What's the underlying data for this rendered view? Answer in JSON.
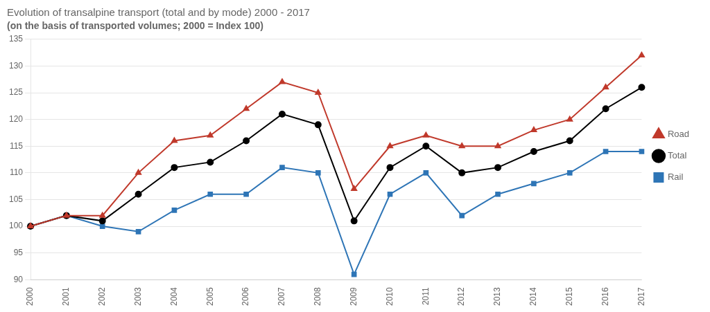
{
  "chart_data": {
    "type": "line",
    "title": "Evolution of transalpine transport (total and by mode) 2000 - 2017",
    "subtitle": "(on the basis of transported volumes; 2000 = Index 100)",
    "categories": [
      "2000",
      "2001",
      "2002",
      "2003",
      "2004",
      "2005",
      "2006",
      "2007",
      "2008",
      "2009",
      "2010",
      "2011",
      "2012",
      "2013",
      "2014",
      "2015",
      "2016",
      "2017"
    ],
    "series": [
      {
        "name": "Road",
        "color": "#c0392b",
        "marker": "triangle",
        "values": [
          100,
          102,
          102,
          110,
          116,
          117,
          122,
          127,
          125,
          107,
          115,
          117,
          115,
          115,
          118,
          120,
          126,
          132
        ]
      },
      {
        "name": "Total",
        "color": "#000000",
        "marker": "circle",
        "values": [
          100,
          102,
          101,
          106,
          111,
          112,
          116,
          121,
          119,
          101,
          111,
          115,
          110,
          111,
          114,
          116,
          122,
          126
        ]
      },
      {
        "name": "Rail",
        "color": "#2e75b6",
        "marker": "square",
        "values": [
          100,
          102,
          100,
          99,
          103,
          106,
          106,
          111,
          110,
          91,
          106,
          110,
          102,
          106,
          108,
          110,
          114,
          114
        ]
      }
    ],
    "ylim": [
      90,
      135
    ],
    "yticks": [
      90,
      95,
      100,
      105,
      110,
      115,
      120,
      125,
      130,
      135
    ],
    "grid": "y",
    "legend": "right"
  }
}
